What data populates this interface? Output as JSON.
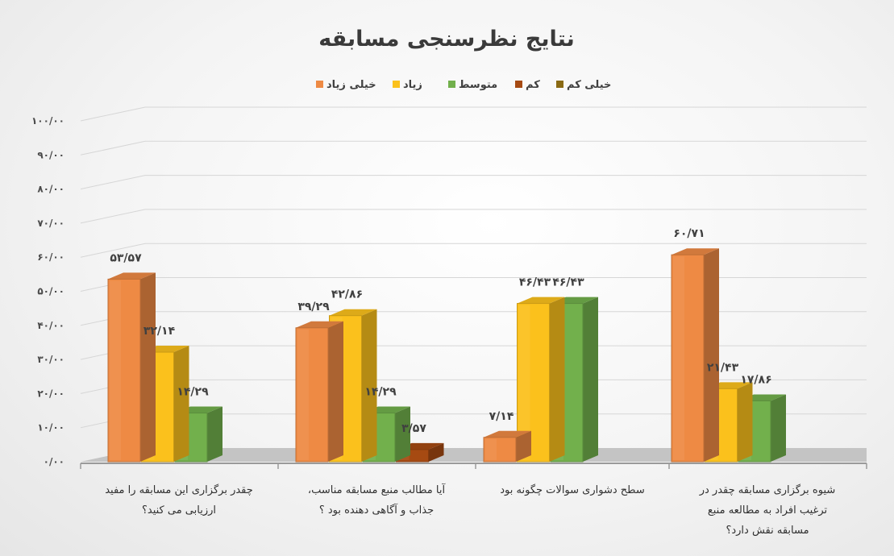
{
  "chart_data": {
    "type": "bar",
    "title": "نتایج نظرسنجی مسابقه",
    "ylim": [
      0,
      100
    ],
    "y_ticks": [
      "۰/۰۰",
      "۱۰/۰۰",
      "۲۰/۰۰",
      "۳۰/۰۰",
      "۴۰/۰۰",
      "۵۰/۰۰",
      "۶۰/۰۰",
      "۷۰/۰۰",
      "۸۰/۰۰",
      "۹۰/۰۰",
      "۱۰۰/۰۰"
    ],
    "grid": true,
    "legend_position": "top",
    "categories": [
      [
        "چقدر برگزاری این مسابقه را مفید",
        "ارزیابی می کنید؟"
      ],
      [
        "آیا مطالب منبع مسابقه مناسب،",
        "جذاب و آگاهی دهنده بود ؟"
      ],
      [
        "سطح دشواری سوالات چگونه بود"
      ],
      [
        "شیوه برگزاری مسابقه چقدر در",
        "ترغیب افراد به مطالعه منبع",
        "مسابقه نقش دارد؟"
      ]
    ],
    "series": [
      {
        "name": "خیلی زیاد",
        "color": "#ee8a44",
        "values": [
          53.57,
          39.29,
          7.14,
          60.71
        ],
        "labels": [
          "۵۳/۵۷",
          "۳۹/۲۹",
          "۷/۱۴",
          "۶۰/۷۱"
        ]
      },
      {
        "name": "زیاد",
        "color": "#fbc11c",
        "values": [
          32.14,
          42.86,
          46.43,
          21.43
        ],
        "labels": [
          "۳۲/۱۴",
          "۴۲/۸۶",
          "۴۶/۴۳",
          "۲۱/۴۳"
        ]
      },
      {
        "name": "متوسط",
        "color": "#72b04c",
        "values": [
          14.29,
          14.29,
          46.43,
          17.86
        ],
        "labels": [
          "۱۴/۲۹",
          "۱۴/۲۹",
          "۴۶/۴۳",
          "۱۷/۸۶"
        ]
      },
      {
        "name": "کم",
        "color": "#a64a12",
        "values": [
          0,
          3.57,
          0,
          0
        ],
        "labels": [
          "",
          "۳/۵۷",
          "",
          ""
        ]
      },
      {
        "name": "خیلی کم",
        "color": "#8a6a14",
        "values": [
          0,
          0,
          0,
          0
        ],
        "labels": [
          "",
          "",
          "",
          ""
        ]
      }
    ]
  }
}
